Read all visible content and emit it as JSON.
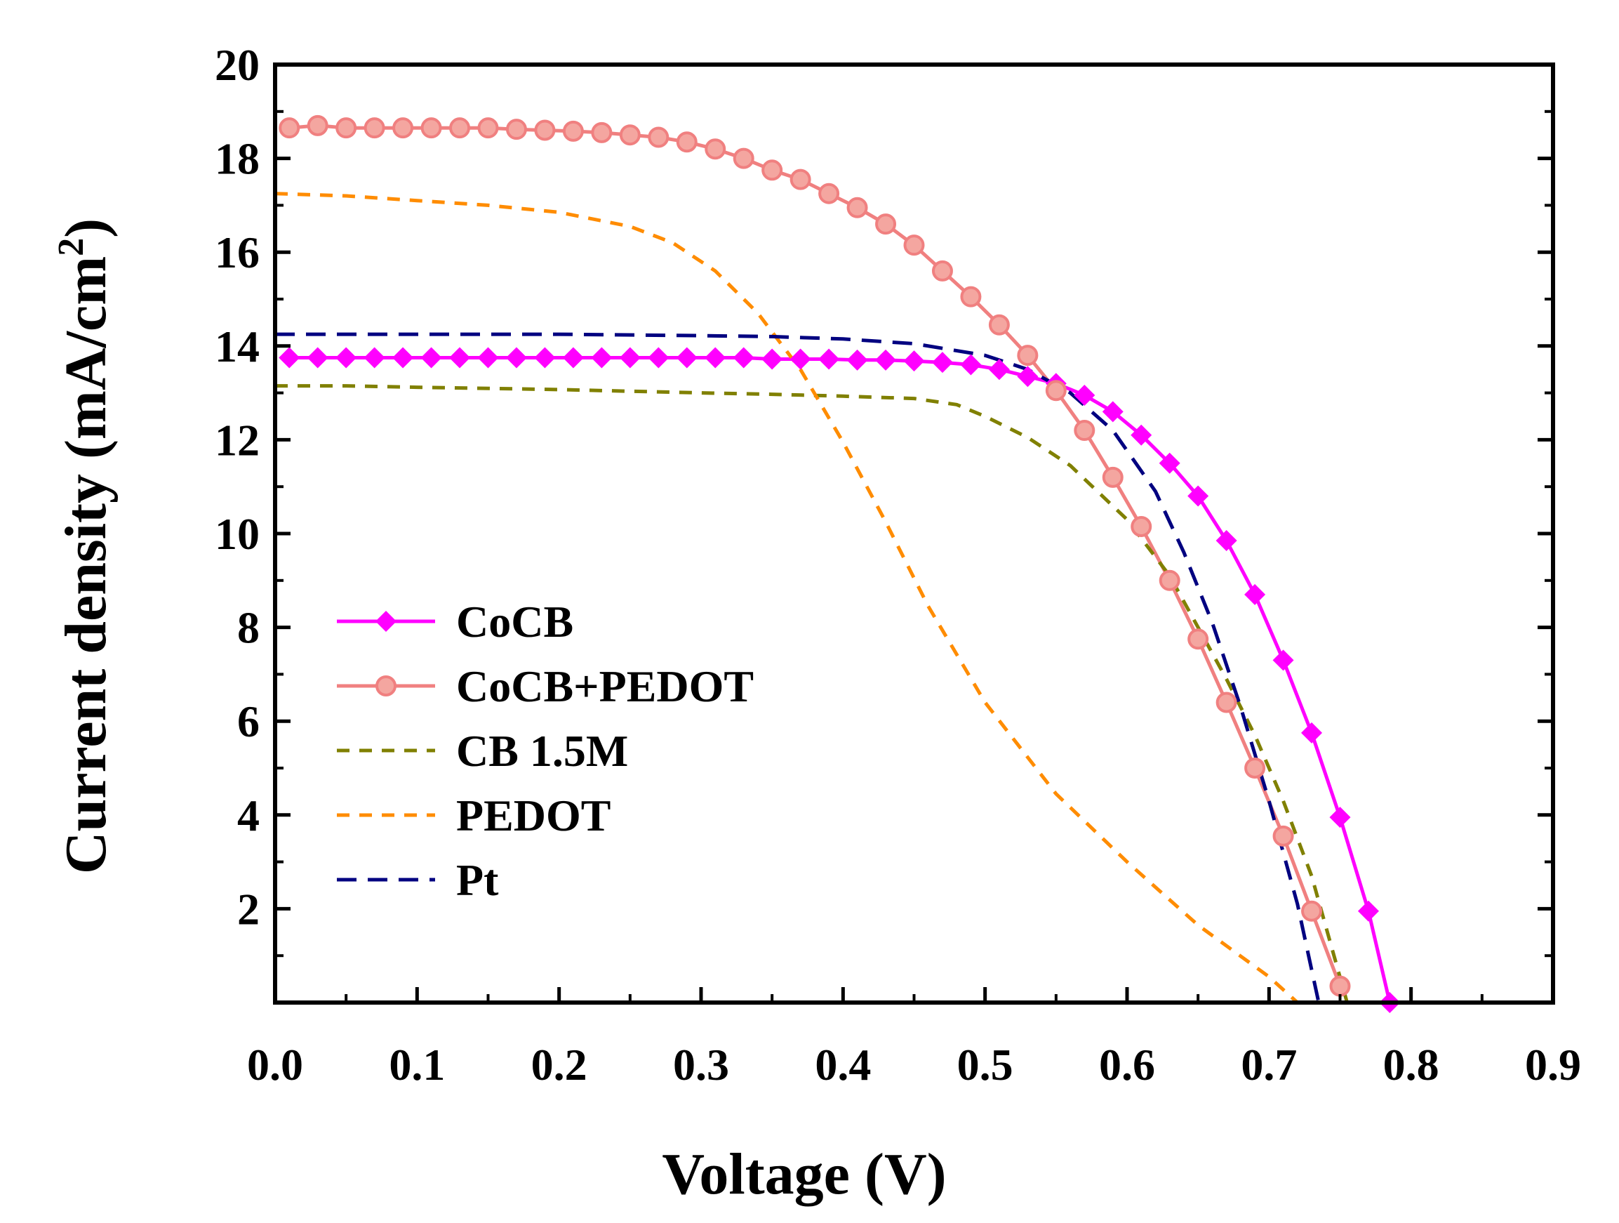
{
  "chart_data": {
    "type": "line",
    "xlabel": "Voltage (V)",
    "ylabel": "Current density (mA/cm",
    "ylabel_sup": "2",
    "ylabel_close": ")",
    "xlim": [
      0.0,
      0.9
    ],
    "ylim": [
      0,
      20
    ],
    "xticks": [
      0.0,
      0.1,
      0.2,
      0.3,
      0.4,
      0.5,
      0.6,
      0.7,
      0.8,
      0.9
    ],
    "xtick_labels": [
      "0.0",
      "0.1",
      "0.2",
      "0.3",
      "0.4",
      "0.5",
      "0.6",
      "0.7",
      "0.8",
      "0.9"
    ],
    "yticks": [
      2,
      4,
      6,
      8,
      10,
      12,
      14,
      16,
      18,
      20
    ],
    "ytick_labels": [
      "2",
      "4",
      "6",
      "8",
      "10",
      "12",
      "14",
      "16",
      "18",
      "20"
    ],
    "legend_position": "center-left",
    "series": [
      {
        "name": "CoCB",
        "color": "#ff00ff",
        "style": "solid",
        "marker": "diamond",
        "x": [
          0.01,
          0.03,
          0.05,
          0.07,
          0.09,
          0.11,
          0.13,
          0.15,
          0.17,
          0.19,
          0.21,
          0.23,
          0.25,
          0.27,
          0.29,
          0.31,
          0.33,
          0.35,
          0.37,
          0.39,
          0.41,
          0.43,
          0.45,
          0.47,
          0.49,
          0.51,
          0.53,
          0.55,
          0.57,
          0.59,
          0.61,
          0.63,
          0.65,
          0.67,
          0.69,
          0.71,
          0.73,
          0.75,
          0.77,
          0.785
        ],
        "y": [
          13.75,
          13.75,
          13.75,
          13.75,
          13.75,
          13.75,
          13.75,
          13.75,
          13.75,
          13.75,
          13.75,
          13.75,
          13.75,
          13.75,
          13.75,
          13.75,
          13.75,
          13.72,
          13.72,
          13.72,
          13.7,
          13.7,
          13.68,
          13.65,
          13.6,
          13.5,
          13.35,
          13.2,
          12.95,
          12.6,
          12.1,
          11.5,
          10.8,
          9.85,
          8.7,
          7.3,
          5.75,
          3.95,
          1.95,
          0.0
        ]
      },
      {
        "name": "CoCB+PEDOT",
        "color": "#f08080",
        "style": "solid",
        "marker": "circle",
        "x": [
          0.01,
          0.03,
          0.05,
          0.07,
          0.09,
          0.11,
          0.13,
          0.15,
          0.17,
          0.19,
          0.21,
          0.23,
          0.25,
          0.27,
          0.29,
          0.31,
          0.33,
          0.35,
          0.37,
          0.39,
          0.41,
          0.43,
          0.45,
          0.47,
          0.49,
          0.51,
          0.53,
          0.55,
          0.57,
          0.59,
          0.61,
          0.63,
          0.65,
          0.67,
          0.69,
          0.71,
          0.73,
          0.75
        ],
        "y": [
          18.65,
          18.7,
          18.65,
          18.65,
          18.65,
          18.65,
          18.65,
          18.65,
          18.62,
          18.6,
          18.58,
          18.55,
          18.5,
          18.45,
          18.35,
          18.2,
          18.0,
          17.75,
          17.55,
          17.25,
          16.95,
          16.6,
          16.15,
          15.6,
          15.05,
          14.45,
          13.8,
          13.05,
          12.2,
          11.2,
          10.15,
          9.0,
          7.75,
          6.4,
          5.0,
          3.55,
          1.95,
          0.35
        ]
      },
      {
        "name": "CB 1.5M",
        "color": "#808000",
        "style": "dashed",
        "x": [
          0.0,
          0.05,
          0.1,
          0.2,
          0.3,
          0.35,
          0.4,
          0.45,
          0.48,
          0.5,
          0.53,
          0.56,
          0.6,
          0.63,
          0.65,
          0.67,
          0.69,
          0.71,
          0.73,
          0.755
        ],
        "y": [
          13.15,
          13.15,
          13.12,
          13.07,
          13.0,
          12.97,
          12.93,
          12.88,
          12.75,
          12.5,
          12.05,
          11.45,
          10.3,
          9.1,
          8.0,
          6.9,
          5.7,
          4.3,
          2.7,
          0.0
        ]
      },
      {
        "name": "PEDOT",
        "color": "#ff8c00",
        "style": "dashed",
        "x": [
          0.0,
          0.05,
          0.1,
          0.15,
          0.2,
          0.25,
          0.28,
          0.31,
          0.34,
          0.37,
          0.4,
          0.43,
          0.46,
          0.5,
          0.55,
          0.6,
          0.65,
          0.7,
          0.72
        ],
        "y": [
          17.25,
          17.2,
          17.1,
          17.0,
          16.85,
          16.55,
          16.2,
          15.6,
          14.7,
          13.5,
          11.95,
          10.25,
          8.45,
          6.4,
          4.45,
          3.0,
          1.65,
          0.55,
          0.0
        ]
      },
      {
        "name": "Pt",
        "color": "#000080",
        "style": "dashed",
        "x": [
          0.0,
          0.1,
          0.2,
          0.3,
          0.35,
          0.4,
          0.45,
          0.5,
          0.53,
          0.56,
          0.59,
          0.62,
          0.64,
          0.66,
          0.68,
          0.7,
          0.72,
          0.735
        ],
        "y": [
          14.25,
          14.25,
          14.25,
          14.22,
          14.2,
          14.15,
          14.05,
          13.8,
          13.5,
          13.0,
          12.2,
          10.9,
          9.6,
          8.1,
          6.3,
          4.3,
          2.1,
          0.0
        ]
      }
    ]
  }
}
